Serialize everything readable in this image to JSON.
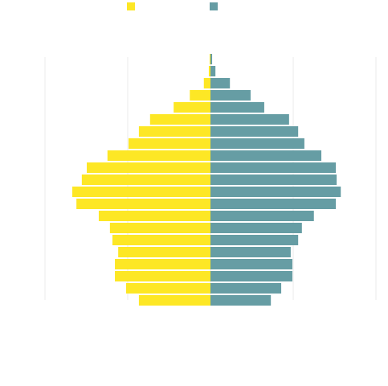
{
  "chart_data": {
    "type": "pyramid",
    "categories": [
      null,
      null,
      null,
      null,
      null,
      null,
      null,
      null,
      null,
      null,
      null,
      null,
      null,
      null,
      null,
      null,
      null,
      null,
      null,
      null,
      null
    ],
    "series": [
      {
        "color": "#fde725",
        "values": [
          -0.02,
          -0.04,
          -0.16,
          -0.5,
          -0.89,
          -1.46,
          -1.73,
          -1.98,
          -2.49,
          -2.99,
          -3.11,
          -3.34,
          -3.24,
          -2.7,
          -2.43,
          -2.37,
          -2.23,
          -2.31,
          -2.31,
          -2.04,
          -1.73
        ]
      },
      {
        "color": "#669da4",
        "values": [
          0.04,
          0.12,
          0.47,
          0.97,
          1.3,
          1.9,
          2.12,
          2.27,
          2.68,
          3.03,
          3.05,
          3.15,
          3.03,
          2.5,
          2.21,
          2.12,
          1.94,
          1.98,
          1.98,
          1.71,
          1.46
        ]
      }
    ],
    "xlim": [
      -4,
      4
    ],
    "xticks": [
      -4,
      -2,
      0,
      2,
      4
    ],
    "grid": true
  }
}
